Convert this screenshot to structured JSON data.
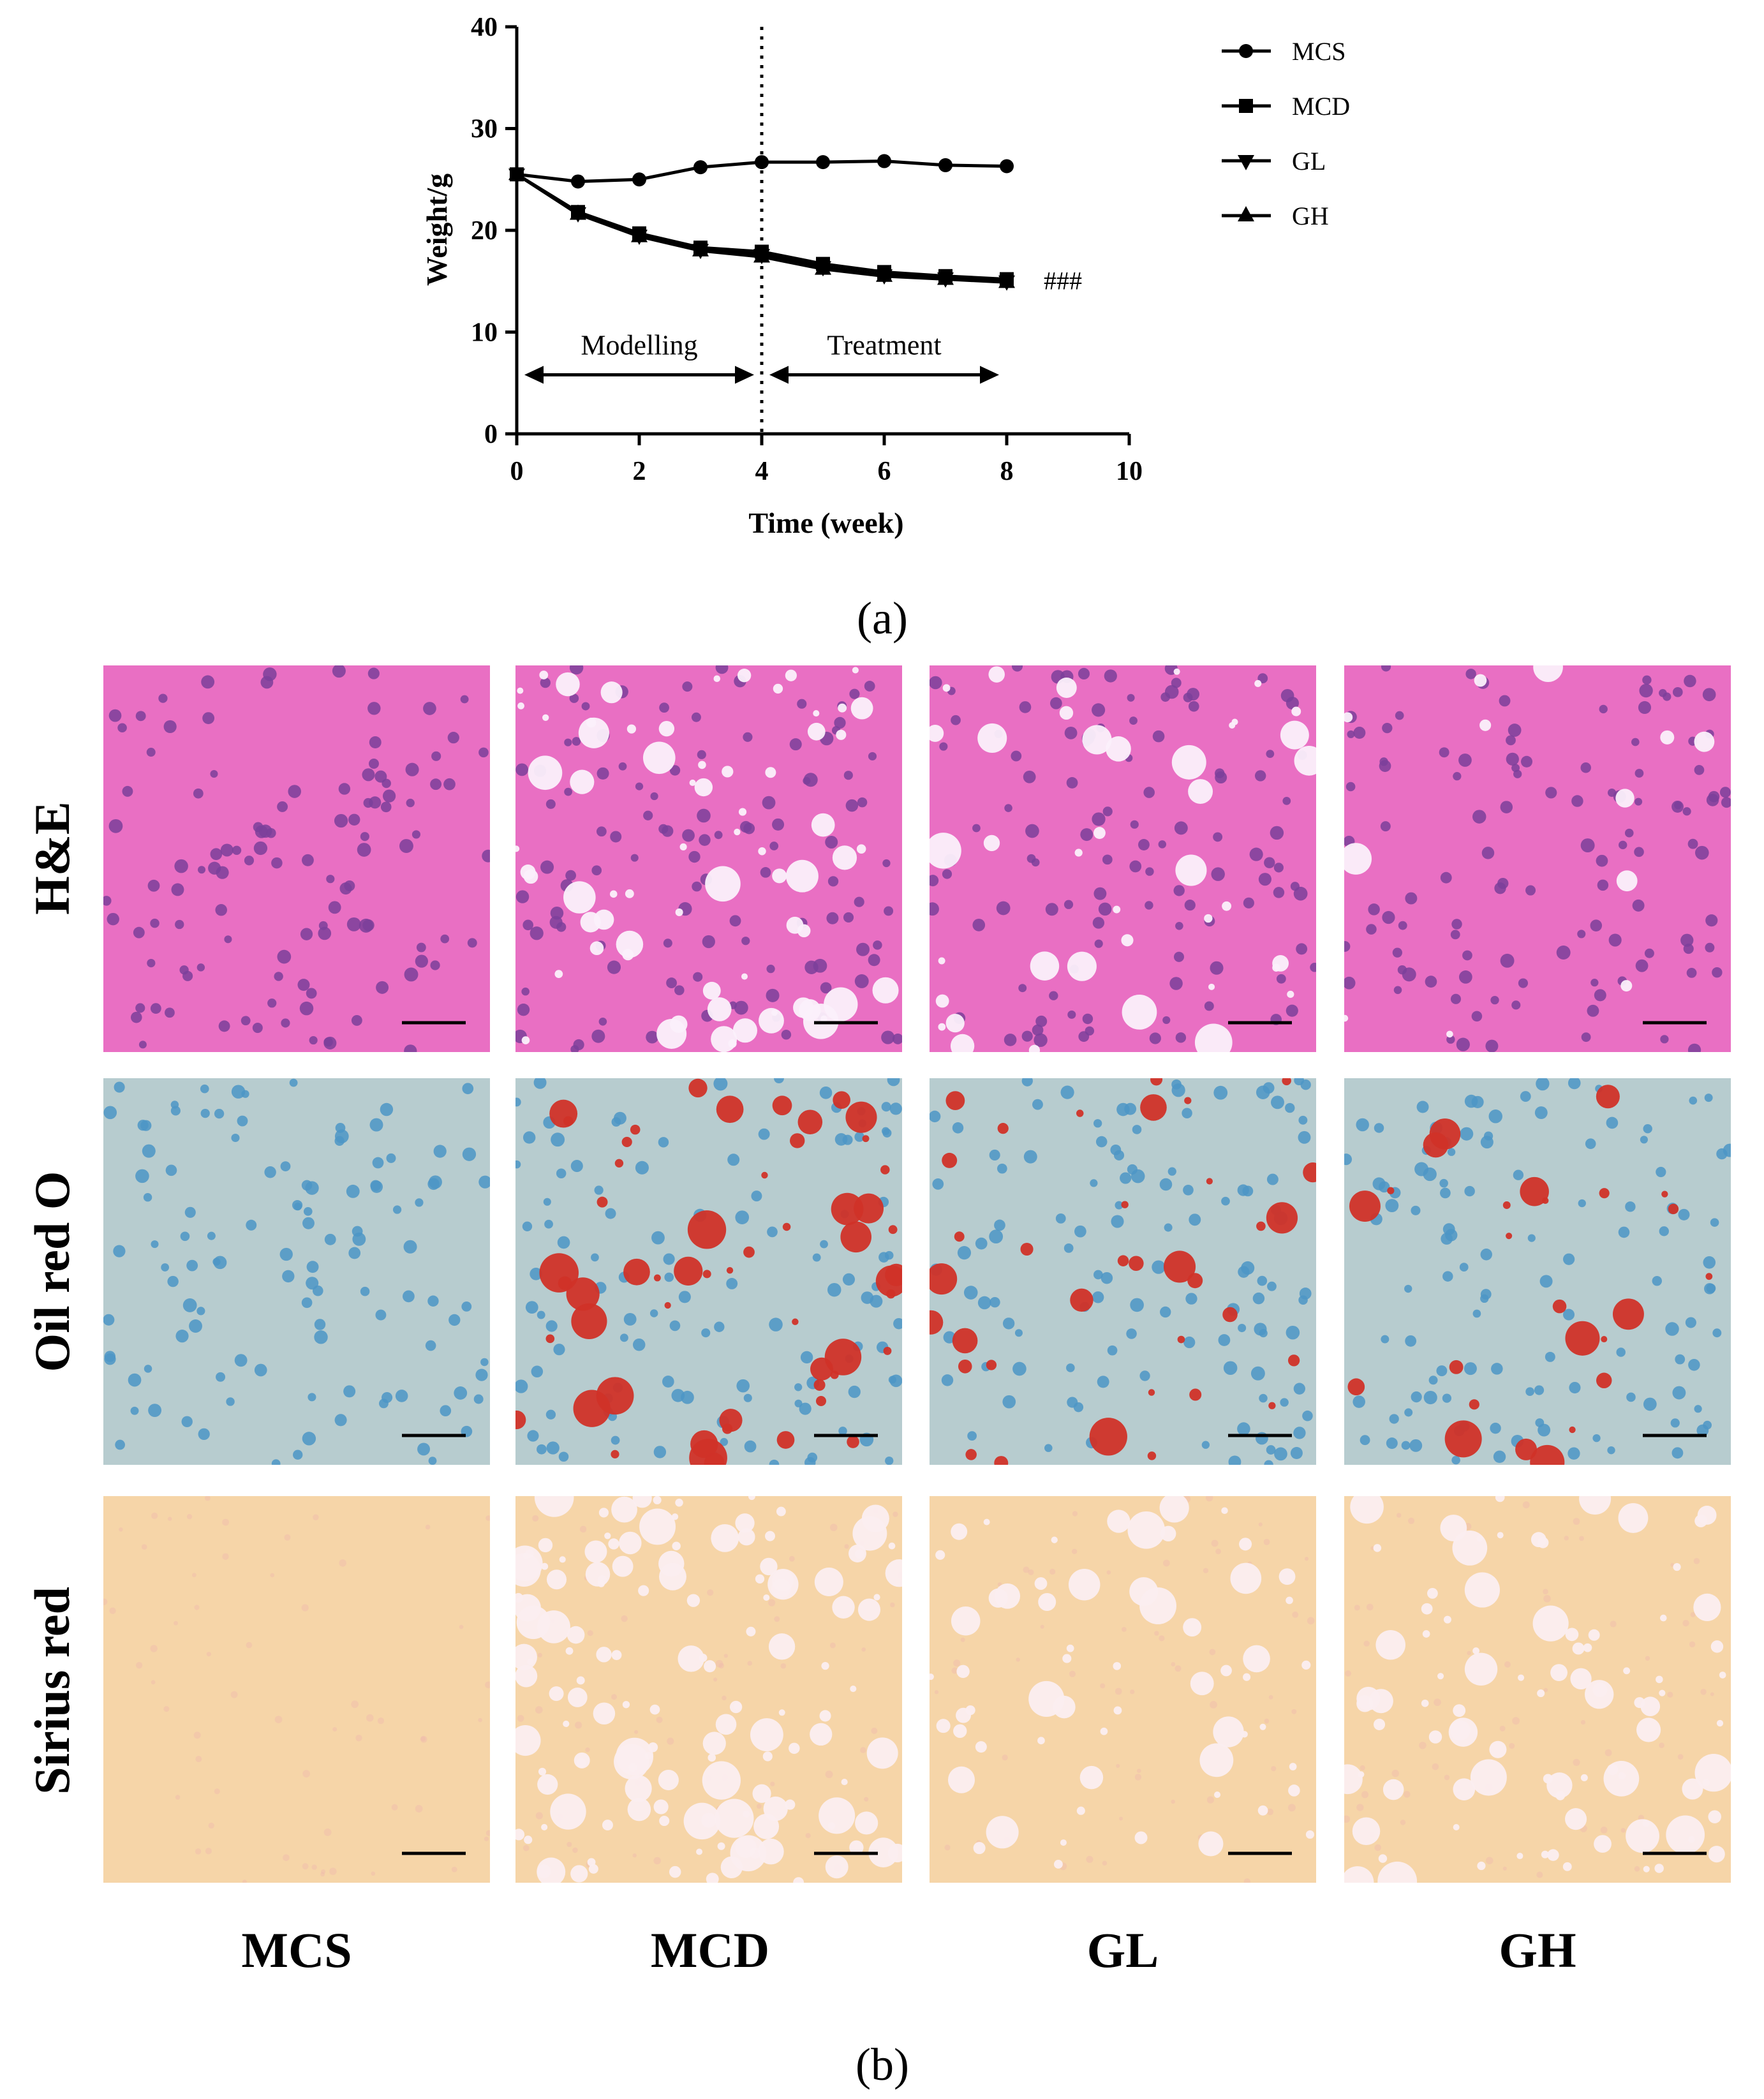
{
  "panel_a_label": "(a)",
  "panel_b_label": "(b)",
  "chart_data": {
    "type": "line",
    "title": "",
    "xlabel": "Time (week)",
    "ylabel": "Weight/g",
    "xlim": [
      0,
      10
    ],
    "ylim": [
      0,
      40
    ],
    "xticks": [
      0,
      2,
      4,
      6,
      8,
      10
    ],
    "yticks": [
      0,
      10,
      20,
      30,
      40
    ],
    "grid": false,
    "legend_position": "top-right",
    "series": [
      {
        "name": "MCS",
        "marker": "circle",
        "x": [
          0,
          1,
          2,
          3,
          4,
          5,
          6,
          7,
          8
        ],
        "y": [
          25.5,
          24.8,
          25.0,
          26.2,
          26.7,
          26.7,
          26.8,
          26.4,
          26.3
        ]
      },
      {
        "name": "MCD",
        "marker": "square",
        "x": [
          0,
          1,
          2,
          3,
          4,
          5,
          6,
          7,
          8
        ],
        "y": [
          25.5,
          21.8,
          19.7,
          18.3,
          17.9,
          16.7,
          15.9,
          15.5,
          15.2
        ]
      },
      {
        "name": "GL",
        "marker": "triangle-down",
        "x": [
          0,
          1,
          2,
          3,
          4,
          5,
          6,
          7,
          8
        ],
        "y": [
          25.5,
          21.7,
          19.5,
          18.1,
          17.6,
          16.4,
          15.6,
          15.3,
          15.0
        ]
      },
      {
        "name": "GH",
        "marker": "triangle-up",
        "x": [
          0,
          1,
          2,
          3,
          4,
          5,
          6,
          7,
          8
        ],
        "y": [
          25.5,
          21.6,
          19.4,
          18.0,
          17.4,
          16.2,
          15.5,
          15.2,
          14.9
        ]
      }
    ],
    "annotations": {
      "vline_x": 4,
      "significance": "###",
      "phases": [
        {
          "label": "Modelling",
          "from": 0,
          "to": 4
        },
        {
          "label": "Treatment",
          "from": 4,
          "to": 8
        }
      ]
    }
  },
  "histology": {
    "rows": [
      {
        "label": "H&E",
        "stain": "he"
      },
      {
        "label": "Oil red O",
        "stain": "oro"
      },
      {
        "label": "Sirius red",
        "stain": "sr"
      }
    ],
    "columns": [
      "MCS",
      "MCD",
      "GL",
      "GH"
    ]
  }
}
